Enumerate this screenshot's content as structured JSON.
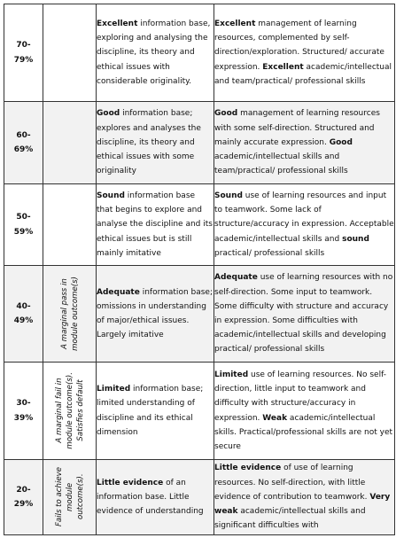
{
  "rows": [
    {
      "grade_lines": [
        "70-",
        "79%"
      ],
      "category_lines": [],
      "knowledge": [
        {
          "b": "Excellent",
          "t": " information base, exploring and analysing the discipline, its theory and ethical issues with considerable originality."
        }
      ],
      "skills": [
        {
          "b": "Excellent",
          "t": " management of learning resources, complemented by self-direction/exploration. Structured/ accurate expression. "
        },
        {
          "b": "Excellent",
          "t": " academic/intellectual and team/practical/ professional skills"
        }
      ]
    },
    {
      "grade_lines": [
        "60-",
        "69%"
      ],
      "category_lines": [],
      "knowledge": [
        {
          "b": "Good",
          "t": " information base; explores and analyses the discipline, its theory and ethical issues with some originality"
        }
      ],
      "skills": [
        {
          "b": "Good",
          "t": " management of learning resources with some self-direction. Structured and mainly accurate expression. "
        },
        {
          "b": "Good",
          "t": " academic/intellectual skills and team/practical/ professional skills"
        }
      ]
    },
    {
      "grade_lines": [
        "50-",
        "59%"
      ],
      "category_lines": [],
      "knowledge": [
        {
          "b": "Sound",
          "t": " information base that begins to explore and analyse the discipline and its ethical issues but is still mainly imitative"
        }
      ],
      "skills": [
        {
          "b": "Sound",
          "t": " use of learning resources and input to teamwork. Some lack of structure/accuracy in expression. Acceptable academic/intellectual skills and "
        },
        {
          "b": "sound",
          "t": " practical/ professional skills"
        }
      ]
    },
    {
      "grade_lines": [
        "40-",
        "49%"
      ],
      "category_lines": [
        "A marginal pass in",
        "module outcome(s)"
      ],
      "knowledge": [
        {
          "b": "Adequate",
          "t": " information base; omissions in understanding of major/ethical issues. Largely  imitative"
        }
      ],
      "skills": [
        {
          "b": "Adequate",
          "t": " use of learning resources with no self-direction. Some input to teamwork. Some difficulty with structure and accuracy in expression. Some difficulties with academic/intellectual skills and developing practical/ professional skills"
        }
      ]
    },
    {
      "grade_lines": [
        "30-",
        "39%"
      ],
      "category_lines": [
        "A marginal fail in",
        "module outcome(s).",
        "Satisfies default"
      ],
      "knowledge": [
        {
          "b": "Limited",
          "t": " information base; limited understanding of discipline and its ethical dimension"
        }
      ],
      "skills": [
        {
          "b": "Limited",
          "t": " use of learning resources. No self-direction, little input to teamwork and difficulty with structure/accuracy in expression. "
        },
        {
          "b": "Weak",
          "t": " academic/intellectual skills. Practical/professional skills are not yet secure"
        }
      ]
    },
    {
      "grade_lines": [
        "20-",
        "29%"
      ],
      "category_lines": [
        "Fails to achieve",
        "module",
        "outcome(s)."
      ],
      "knowledge": [
        {
          "b": "Little evidence",
          "t": " of an information base. Little evidence of understanding"
        }
      ],
      "skills": [
        {
          "b": "Little evidence",
          "t": " of use of learning resources. No self-direction, with little evidence of contribution to teamwork. "
        },
        {
          "b": "Very weak",
          "t": " academic/intellectual skills and significant difficulties with"
        }
      ]
    }
  ]
}
